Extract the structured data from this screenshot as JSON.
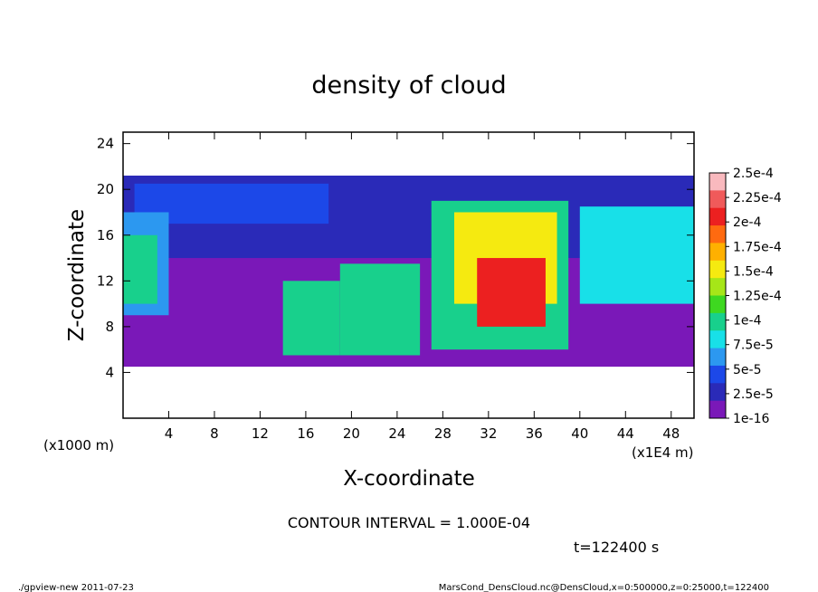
{
  "chart_data": {
    "type": "heatmap",
    "title": "density of cloud",
    "xlabel": "X-coordinate",
    "ylabel": "Z-coordinate",
    "x_unit_label": "(x1E4 m)",
    "y_unit_label": "(x1000 m)",
    "xlim": [
      0,
      50
    ],
    "ylim": [
      0,
      25
    ],
    "x_ticks": [
      "4",
      "8",
      "12",
      "16",
      "20",
      "24",
      "28",
      "32",
      "36",
      "40",
      "44",
      "48"
    ],
    "x_tick_values": [
      4,
      8,
      12,
      16,
      20,
      24,
      28,
      32,
      36,
      40,
      44,
      48
    ],
    "y_ticks": [
      "4",
      "8",
      "12",
      "16",
      "20",
      "24"
    ],
    "y_tick_values": [
      4,
      8,
      12,
      16,
      20,
      24
    ],
    "colorbar": {
      "labels": [
        "2.5e-4",
        "2.25e-4",
        "2e-4",
        "1.75e-4",
        "1.5e-4",
        "1.25e-4",
        "1e-4",
        "7.5e-5",
        "5e-5",
        "2.5e-5",
        "1e-16"
      ],
      "colors": [
        "#f9b9be",
        "#f05a5a",
        "#ec2020",
        "#ff6a10",
        "#ffb000",
        "#f5ea10",
        "#a6e618",
        "#3ed820",
        "#18d08c",
        "#18e0e8",
        "#2c98f0",
        "#1c48e8",
        "#2a2ab8",
        "#7a18b8"
      ]
    },
    "regions": [
      {
        "x0": 0,
        "x1": 50,
        "z0": 4.5,
        "z1": 21.2,
        "level": 0
      },
      {
        "x0": 0,
        "x1": 50,
        "z0": 14,
        "z1": 21.2,
        "level": 1
      },
      {
        "x0": 1,
        "x1": 18,
        "z0": 17,
        "z1": 20.5,
        "level": 2
      },
      {
        "x0": 0,
        "x1": 4,
        "z0": 9,
        "z1": 18,
        "level": 3
      },
      {
        "x0": 0,
        "x1": 3,
        "z0": 10,
        "z1": 16,
        "level": 5
      },
      {
        "x0": 14,
        "x1": 19,
        "z0": 5.5,
        "z1": 12,
        "level": 5
      },
      {
        "x0": 19,
        "x1": 26,
        "z0": 5.5,
        "z1": 13.5,
        "level": 5
      },
      {
        "x0": 27,
        "x1": 39,
        "z0": 6,
        "z1": 19,
        "level": 5
      },
      {
        "x0": 40,
        "x1": 50,
        "z0": 10,
        "z1": 18.5,
        "level": 4
      },
      {
        "x0": 29,
        "x1": 38,
        "z0": 10,
        "z1": 18,
        "level": 8
      },
      {
        "x0": 31,
        "x1": 37,
        "z0": 8,
        "z1": 14,
        "level": 11
      }
    ],
    "annotations": [
      "CONTOUR INTERVAL = 1.000E-04",
      "t=122400 s"
    ]
  },
  "footer": {
    "left": "./gpview-new   2011-07-23",
    "right": "MarsCond_DensCloud.nc@DensCloud,x=0:500000,z=0:25000,t=122400"
  }
}
